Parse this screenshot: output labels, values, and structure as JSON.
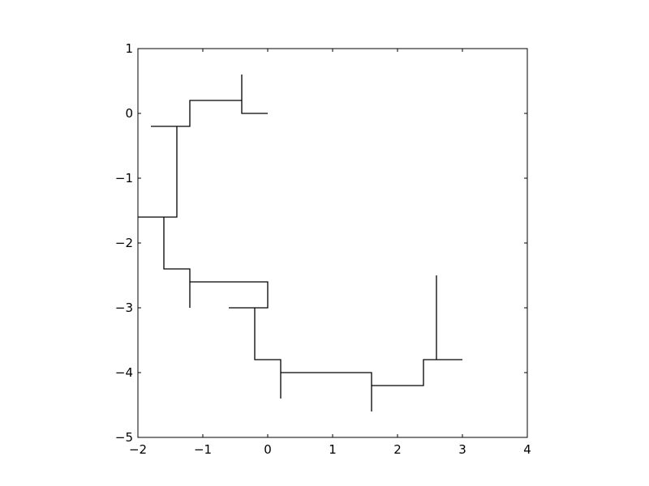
{
  "chart_data": {
    "type": "line",
    "title": "",
    "xlabel": "",
    "ylabel": "",
    "xlim": [
      -2,
      4
    ],
    "ylim": [
      -5,
      1
    ],
    "xticks": [
      -2,
      -1,
      0,
      1,
      2,
      3,
      4
    ],
    "yticks": [
      -5,
      -4,
      -3,
      -2,
      -1,
      0,
      1
    ],
    "xtick_labels": [
      "−2",
      "−1",
      "0",
      "1",
      "2",
      "3",
      "4"
    ],
    "ytick_labels": [
      "−5",
      "−4",
      "−3",
      "−2",
      "−1",
      "0",
      "1"
    ],
    "grid": false,
    "line_color": "#000000",
    "series": [
      {
        "x": [
          0,
          -0.4,
          -0.4,
          -0.4,
          -1.2,
          -1.2,
          -1.4,
          -1.8,
          -1.4,
          -1.4,
          -1.4,
          -2,
          -1.6,
          -1.6,
          -1.2,
          -1.2,
          -1.2,
          -1.2,
          0,
          0,
          -0.6,
          -0.2,
          -0.2,
          0.2,
          0.2,
          0.2,
          1.6,
          1.6,
          1.6,
          1.6,
          2.4,
          2.4,
          2.6,
          2.6,
          2.6,
          3
        ],
        "y": [
          0,
          0,
          0.6,
          0.2,
          0.2,
          -0.2,
          -0.2,
          -0.2,
          -0.2,
          -1.6,
          -1.6,
          -1.6,
          -1.6,
          -2.4,
          -2.4,
          -2.6,
          -3,
          -2.6,
          -2.6,
          -3,
          -3,
          -3,
          -3.8,
          -3.8,
          -4.4,
          -4,
          -4,
          -4.6,
          -4.2,
          -4.2,
          -4.2,
          -3.8,
          -3.8,
          -2.5,
          -3.8,
          -3.8
        ]
      }
    ]
  }
}
